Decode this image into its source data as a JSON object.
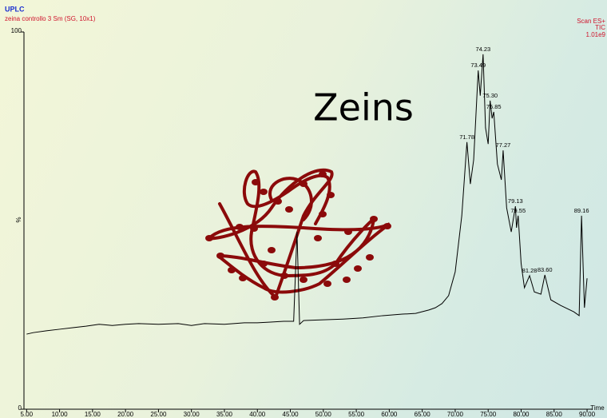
{
  "chart_data": {
    "type": "line",
    "title": "UPLC",
    "subtitle": "zeina controllo 3 Sm (SG, 10x1)",
    "scan_info": [
      "Scan ES+",
      "TIC",
      "1.01e9"
    ],
    "inset_label": "Zeins",
    "x_label": "Time",
    "y_label": "%",
    "color": "#000000",
    "x": [
      5,
      6,
      8,
      10,
      12,
      14,
      16,
      18,
      20,
      22,
      25,
      28,
      30,
      32,
      35,
      38,
      40,
      42,
      44,
      45.5,
      46.01,
      46.4,
      47,
      50,
      53,
      56,
      59,
      62,
      64,
      66,
      67,
      68,
      69,
      70,
      71,
      71.78,
      72.3,
      72.8,
      73.49,
      73.8,
      74.23,
      74.6,
      75.0,
      75.3,
      75.6,
      75.85,
      76.4,
      77.0,
      77.27,
      77.8,
      78.5,
      79.13,
      79.3,
      79.55,
      80.0,
      80.5,
      81.28,
      82.0,
      83.0,
      83.6,
      84.5,
      86,
      88,
      88.8,
      89.16,
      89.6,
      90.0
    ],
    "values": [
      19.9,
      20.3,
      20.8,
      21.2,
      21.6,
      22.0,
      22.5,
      22.2,
      22.5,
      22.7,
      22.5,
      22.7,
      22.2,
      22.7,
      22.5,
      22.9,
      22.9,
      23.1,
      23.3,
      23.3,
      47.0,
      22.5,
      23.5,
      23.7,
      23.9,
      24.2,
      24.8,
      25.2,
      25.4,
      26.3,
      26.9,
      28.0,
      30.1,
      36.4,
      51.3,
      70.8,
      59.7,
      66.1,
      89.8,
      83.1,
      94.1,
      74.6,
      70.3,
      81.8,
      77.1,
      78.8,
      65.0,
      60.8,
      68.6,
      53.4,
      47.0,
      53.8,
      48.1,
      51.3,
      38.6,
      32.2,
      35.4,
      31.1,
      30.5,
      35.6,
      29.0,
      27.5,
      25.8,
      24.8,
      51.3,
      26.9,
      34.7
    ],
    "annotations": [
      {
        "text": "71.78",
        "x": 71.78,
        "y": 70.8
      },
      {
        "text": "73.49",
        "x": 73.49,
        "y": 89.8
      },
      {
        "text": "74.23",
        "x": 74.23,
        "y": 94.1
      },
      {
        "text": "75.30",
        "x": 75.3,
        "y": 81.8
      },
      {
        "text": "75.85",
        "x": 75.85,
        "y": 78.8
      },
      {
        "text": "77.27",
        "x": 77.27,
        "y": 68.6
      },
      {
        "text": "79.13",
        "x": 79.13,
        "y": 53.8
      },
      {
        "text": "79.55",
        "x": 79.55,
        "y": 51.3
      },
      {
        "text": "81.28",
        "x": 81.28,
        "y": 35.4
      },
      {
        "text": "83.60",
        "x": 83.6,
        "y": 35.6
      },
      {
        "text": "89.16",
        "x": 89.16,
        "y": 51.3
      }
    ],
    "xlim": [
      4.6,
      90.6
    ],
    "ylim": [
      0,
      100
    ],
    "xticks": [
      {
        "value": 5,
        "label": "5.00"
      },
      {
        "value": 10,
        "label": "10.00"
      },
      {
        "value": 15,
        "label": "15.00"
      },
      {
        "value": 20,
        "label": "20.00"
      },
      {
        "value": 25,
        "label": "25.00"
      },
      {
        "value": 30,
        "label": "30.00"
      },
      {
        "value": 35,
        "label": "35.00"
      },
      {
        "value": 40,
        "label": "40.00"
      },
      {
        "value": 45,
        "label": "45.00"
      },
      {
        "value": 50,
        "label": "50.00"
      },
      {
        "value": 55,
        "label": "55.00"
      },
      {
        "value": 60,
        "label": "60.00"
      },
      {
        "value": 65,
        "label": "65.00"
      },
      {
        "value": 70,
        "label": "70.00"
      },
      {
        "value": 75,
        "label": "75.00"
      },
      {
        "value": 80,
        "label": "80.00"
      },
      {
        "value": 85,
        "label": "85.00"
      },
      {
        "value": 90,
        "label": "90.00"
      }
    ],
    "yticks": [
      0,
      100
    ],
    "grid": false
  }
}
